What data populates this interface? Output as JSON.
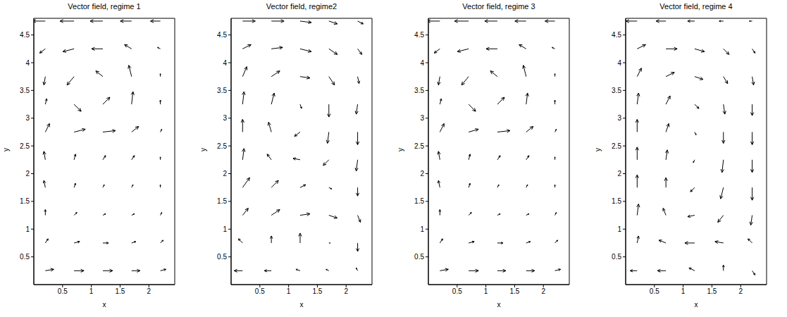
{
  "chart_data": [
    {
      "type": "quiver",
      "title": "Vector field, regime 1",
      "x_label": "x",
      "y_label": "y",
      "color": "#000000",
      "xlim": [
        0,
        2.45
      ],
      "ylim": [
        0,
        4.8
      ],
      "xticks": [
        0.5,
        1,
        1.5,
        2
      ],
      "yticks": [
        0.5,
        1,
        1.5,
        2,
        2.5,
        3,
        3.5,
        4,
        4.5
      ],
      "x": [
        0.2,
        0.7,
        1.2,
        1.7,
        2.2
      ],
      "y": [
        0.25,
        0.75,
        1.25,
        1.75,
        2.25,
        2.75,
        3.25,
        3.75,
        4.25,
        4.75
      ],
      "u": [
        [
          0.6,
          0.7,
          0.7,
          0.6,
          0.4
        ],
        [
          0.2,
          0.4,
          0.4,
          0.3,
          0.2
        ],
        [
          0.0,
          0.2,
          0.2,
          0.2,
          0.1
        ],
        [
          -0.1,
          0.1,
          0.1,
          0.1,
          0.0
        ],
        [
          -0.1,
          0.1,
          0.2,
          0.2,
          0.0
        ],
        [
          0.3,
          0.8,
          0.9,
          0.5,
          0.1
        ],
        [
          0.1,
          0.5,
          0.5,
          0.1,
          0.0
        ],
        [
          -0.1,
          -0.5,
          -0.5,
          -0.2,
          0.0
        ],
        [
          -0.4,
          -0.8,
          -0.8,
          -0.5,
          -0.2
        ],
        [
          -0.9,
          -1,
          -0.9,
          -0.8,
          -0.7
        ]
      ],
      "v": [
        [
          0.1,
          0,
          0,
          0,
          0.1
        ],
        [
          0.3,
          0.1,
          0,
          0.1,
          0.2
        ],
        [
          0.4,
          0.2,
          0.1,
          0.1,
          0.2
        ],
        [
          0.5,
          0.3,
          0.2,
          0.2,
          0.2
        ],
        [
          0.6,
          0.4,
          0.3,
          0.3,
          0.2
        ],
        [
          0.6,
          0.2,
          0.1,
          0.4,
          0.2
        ],
        [
          0.4,
          -0.5,
          0.5,
          0.9,
          0.3
        ],
        [
          -0.6,
          -0.6,
          0.4,
          0.8,
          0.2
        ],
        [
          -0.3,
          -0.2,
          0,
          0.3,
          0.1
        ],
        [
          0,
          0,
          0,
          0,
          0
        ]
      ]
    },
    {
      "type": "quiver",
      "title": "Vector field, regime2",
      "x_label": "x",
      "y_label": "y",
      "color": "#000000",
      "xlim": [
        0,
        2.45
      ],
      "ylim": [
        0,
        4.8
      ],
      "xticks": [
        0.5,
        1,
        1.5,
        2
      ],
      "yticks": [
        0.5,
        1,
        1.5,
        2,
        2.5,
        3,
        3.5,
        4,
        4.5
      ],
      "x": [
        0.2,
        0.7,
        1.2,
        1.7,
        2.2
      ],
      "y": [
        0.25,
        0.75,
        1.25,
        1.75,
        2.25,
        2.75,
        3.25,
        3.75,
        4.25,
        4.75
      ],
      "u": [
        [
          -0.6,
          -0.5,
          -0.3,
          -0.2,
          -0.1
        ],
        [
          -0.3,
          0,
          0,
          0.1,
          0
        ],
        [
          0.4,
          0.6,
          0.7,
          0.6,
          0.2
        ],
        [
          0.5,
          0.5,
          0.4,
          0.2,
          0
        ],
        [
          0.1,
          -0.3,
          -0.5,
          -0.4,
          -0.1
        ],
        [
          0,
          -0.2,
          -0.4,
          -0.1,
          0
        ],
        [
          0.1,
          0.2,
          0.1,
          0,
          -0.1
        ],
        [
          0.3,
          0.6,
          0.7,
          0.4,
          0.1
        ],
        [
          0.6,
          0.8,
          0.8,
          0.6,
          0.3
        ],
        [
          0.9,
          0.9,
          0.8,
          0.6,
          0.4
        ]
      ],
      "v": [
        [
          0,
          0,
          0.1,
          0.1,
          0.2
        ],
        [
          0.3,
          0.5,
          0.7,
          0,
          -0.6
        ],
        [
          0.5,
          0.4,
          0.1,
          -0.2,
          -0.5
        ],
        [
          0.7,
          0.5,
          0.2,
          -0.1,
          -0.6
        ],
        [
          0.8,
          0.4,
          0.1,
          -0.4,
          -0.8
        ],
        [
          0.9,
          0.7,
          -0.3,
          -0.8,
          -0.9
        ],
        [
          0.9,
          0.8,
          -0.3,
          -0.9,
          -0.7
        ],
        [
          0.7,
          0.4,
          -0.1,
          -0.6,
          -0.5
        ],
        [
          0.3,
          0.1,
          -0.2,
          -0.4,
          -0.4
        ],
        [
          0,
          0,
          -0.1,
          -0.2,
          -0.2
        ]
      ]
    },
    {
      "type": "quiver",
      "title": "Vector field, regime 3",
      "x_label": "x",
      "y_label": "y",
      "color": "#000000",
      "xlim": [
        0,
        2.45
      ],
      "ylim": [
        0,
        4.8
      ],
      "xticks": [
        0.5,
        1,
        1.5,
        2
      ],
      "yticks": [
        0.5,
        1,
        1.5,
        2,
        2.5,
        3,
        3.5,
        4,
        4.5
      ],
      "x": [
        0.2,
        0.7,
        1.2,
        1.7,
        2.2
      ],
      "y": [
        0.25,
        0.75,
        1.25,
        1.75,
        2.25,
        2.75,
        3.25,
        3.75,
        4.25,
        4.75
      ],
      "u": [
        [
          0.6,
          0.7,
          0.6,
          0.6,
          0.4
        ],
        [
          0.2,
          0.4,
          0.4,
          0.3,
          0.2
        ],
        [
          0.0,
          0.2,
          0.2,
          0.2,
          0.1
        ],
        [
          -0.1,
          0.1,
          0.1,
          0.1,
          0.0
        ],
        [
          -0.1,
          0.1,
          0.2,
          0.2,
          0.0
        ],
        [
          0.3,
          0.7,
          0.9,
          0.5,
          0.1
        ],
        [
          0.1,
          0.5,
          0.5,
          0.1,
          0.0
        ],
        [
          -0.1,
          -0.5,
          -0.5,
          -0.2,
          0.0
        ],
        [
          -0.4,
          -0.8,
          -0.8,
          -0.5,
          -0.2
        ],
        [
          -0.9,
          -1,
          -0.9,
          -0.8,
          -0.7
        ]
      ],
      "v": [
        [
          0.1,
          0,
          0,
          0,
          0.1
        ],
        [
          0.3,
          0.1,
          0,
          0.1,
          0.2
        ],
        [
          0.4,
          0.2,
          0.1,
          0.1,
          0.2
        ],
        [
          0.5,
          0.3,
          0.2,
          0.2,
          0.2
        ],
        [
          0.6,
          0.4,
          0.3,
          0.3,
          0.2
        ],
        [
          0.6,
          0.2,
          0.1,
          0.4,
          0.2
        ],
        [
          0.4,
          -0.5,
          0.5,
          0.8,
          0.3
        ],
        [
          -0.6,
          -0.6,
          0.4,
          0.8,
          0.2
        ],
        [
          -0.3,
          -0.2,
          0,
          0.3,
          0.1
        ],
        [
          0,
          0,
          0,
          0,
          0
        ]
      ]
    },
    {
      "type": "quiver",
      "title": "Vector field, regime 4",
      "x_label": "x",
      "y_label": "y",
      "color": "#000000",
      "xlim": [
        0,
        2.45
      ],
      "ylim": [
        0,
        4.8
      ],
      "xticks": [
        0.5,
        1,
        1.5,
        2
      ],
      "yticks": [
        0.5,
        1,
        1.5,
        2,
        2.5,
        3,
        3.5,
        4,
        4.5
      ],
      "x": [
        0.2,
        0.7,
        1.2,
        1.7,
        2.2
      ],
      "y": [
        0.25,
        0.75,
        1.25,
        1.75,
        2.25,
        2.75,
        3.25,
        3.75,
        4.25,
        4.75
      ],
      "u": [
        [
          -0.5,
          -0.6,
          -0.4,
          0,
          0.2
        ],
        [
          0.1,
          -0.5,
          -0.7,
          -0.6,
          -0.3
        ],
        [
          0.1,
          -0.2,
          -0.5,
          -0.4,
          -0.1
        ],
        [
          0,
          0,
          -0.3,
          -0.2,
          0
        ],
        [
          0,
          0.1,
          -0.1,
          -0.1,
          0
        ],
        [
          0,
          0.2,
          0.1,
          0,
          0
        ],
        [
          0.1,
          0.3,
          0.3,
          0.1,
          0
        ],
        [
          0.3,
          0.6,
          0.6,
          0.3,
          0.1
        ],
        [
          0.6,
          0.8,
          0.7,
          0.4,
          0.2
        ],
        [
          -0.8,
          -0.7,
          -0.5,
          -0.3,
          -0.2
        ]
      ],
      "v": [
        [
          0,
          0,
          0.2,
          0.4,
          -0.3
        ],
        [
          0.5,
          0.2,
          0,
          0.1,
          0.3
        ],
        [
          0.8,
          0.5,
          -0.1,
          -0.5,
          -0.7
        ],
        [
          0.9,
          0.7,
          -0.3,
          -0.8,
          -0.9
        ],
        [
          0.9,
          0.7,
          -0.2,
          -0.9,
          -0.9
        ],
        [
          0.9,
          0.6,
          -0.2,
          -0.8,
          -0.9
        ],
        [
          0.8,
          0.6,
          -0.3,
          -0.7,
          -0.8
        ],
        [
          0.6,
          0.3,
          -0.2,
          -0.5,
          -0.6
        ],
        [
          0.3,
          0,
          -0.2,
          -0.4,
          -0.3
        ],
        [
          0,
          0,
          0,
          0,
          0
        ]
      ]
    }
  ]
}
